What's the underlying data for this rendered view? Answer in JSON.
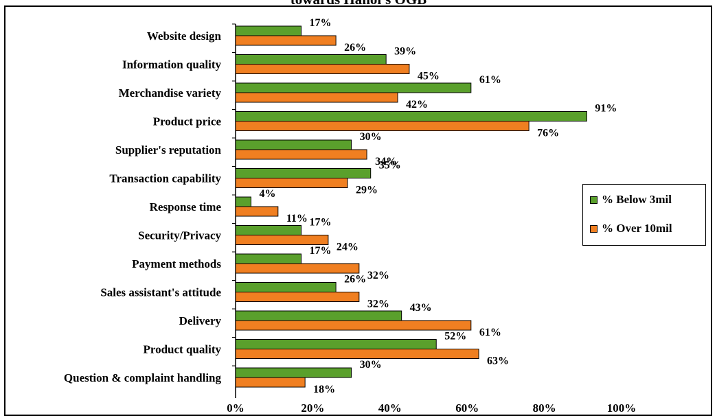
{
  "chart_data": {
    "type": "bar",
    "orientation": "horizontal",
    "title": "towards Hanoi's OGB",
    "categories": [
      "Website design",
      "Information quality",
      "Merchandise variety",
      "Product price",
      "Supplier's reputation",
      "Transaction capability",
      "Response time",
      "Security/Privacy",
      "Payment methods",
      "Sales assistant's attitude",
      "Delivery",
      "Product quality",
      "Question & complaint handling"
    ],
    "series": [
      {
        "name": "% Below 3mil",
        "color": "#5aa02c",
        "values": [
          17,
          39,
          61,
          91,
          30,
          35,
          4,
          17,
          17,
          26,
          43,
          52,
          30
        ],
        "labels": [
          "17%",
          "39%",
          "61%",
          "91%",
          "30%",
          "35%",
          "4%",
          "17%",
          "17%",
          "26%",
          "43%",
          "52%",
          "30%"
        ]
      },
      {
        "name": "% Over 10mil",
        "color": "#f07f21",
        "values": [
          26,
          45,
          42,
          76,
          34,
          29,
          11,
          24,
          32,
          32,
          61,
          63,
          18
        ],
        "labels": [
          "26%",
          "45%",
          "42%",
          "76%",
          "34%",
          "29%",
          "11%",
          "24%",
          "32%",
          "32%",
          "61%",
          "63%",
          "18%"
        ]
      }
    ],
    "xlim": [
      0,
      100
    ],
    "xticks": [
      "0%",
      "20%",
      "40%",
      "60%",
      "80%",
      "100%"
    ],
    "xlabel": "",
    "ylabel": "",
    "grid": false,
    "legend_position": "right"
  }
}
